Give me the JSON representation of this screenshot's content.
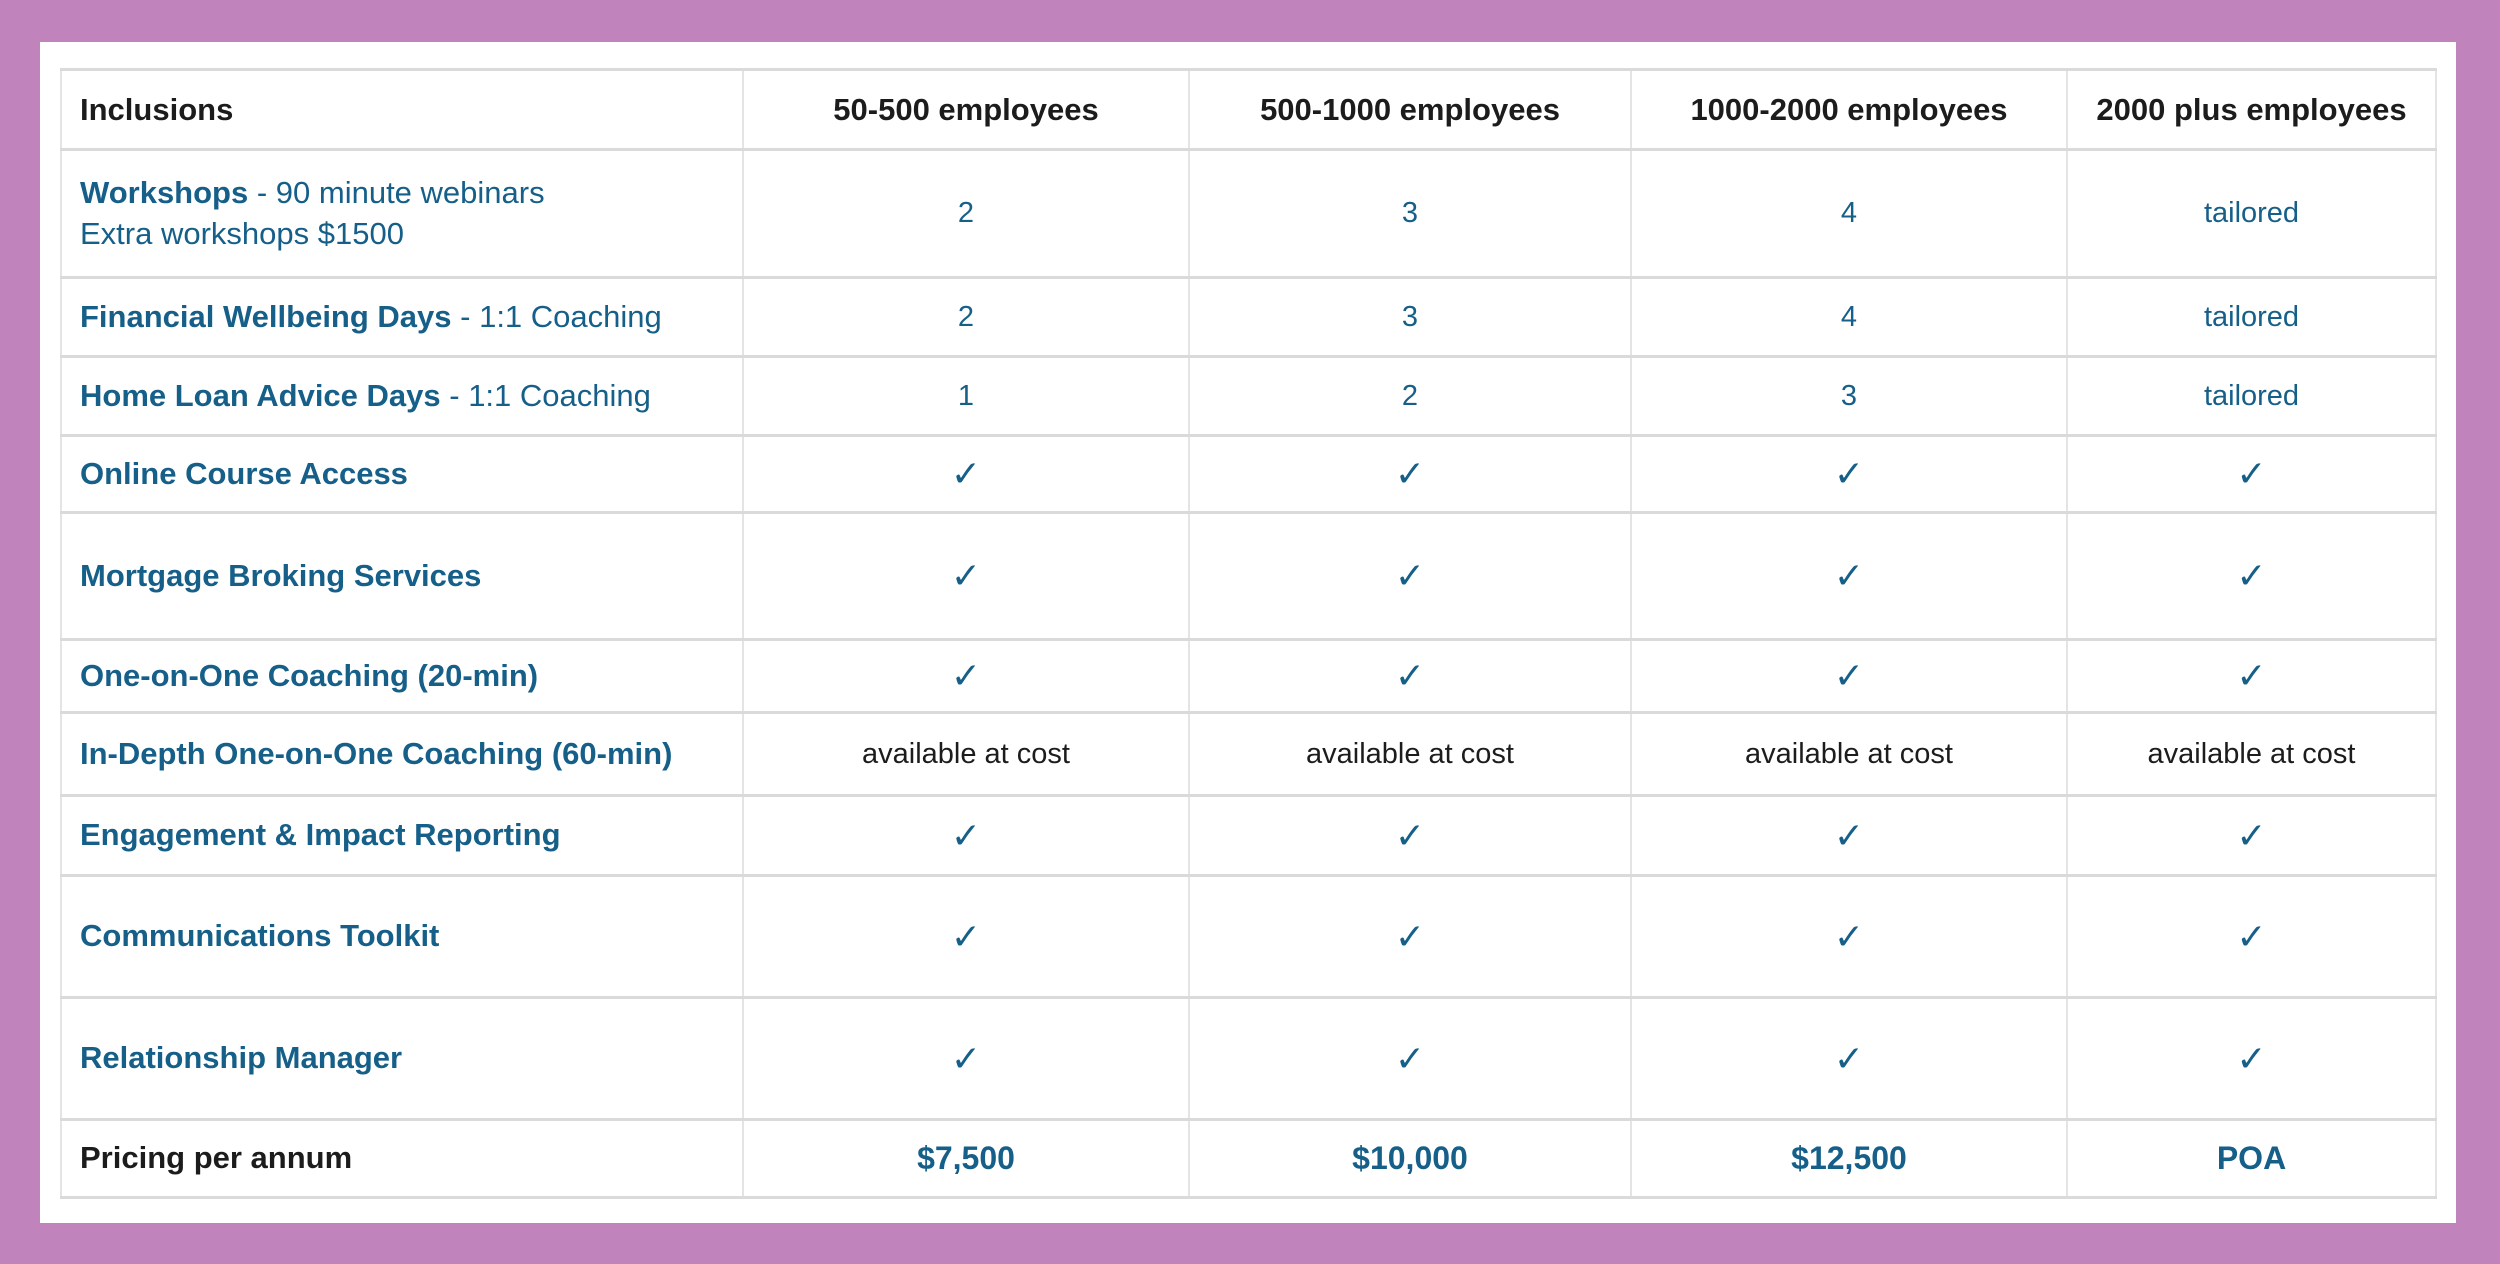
{
  "colors": {
    "background": "#c183bc",
    "panel": "#ffffff",
    "grid": "#dadada",
    "teal_text": "#155f89",
    "dark_text": "#1c1c1c"
  },
  "table": {
    "columns": [
      "Inclusions",
      "50-500 employees",
      "500-1000 employees",
      "1000-2000 employees",
      "2000 plus employees"
    ],
    "check_glyph": "✓",
    "rows": [
      {
        "name": "workshops",
        "label_bold": "Workshops",
        "label_rest": " - 90 minute webinars",
        "label_line2": "Extra workshops $1500",
        "cell_kind": "number",
        "cells": [
          "2",
          "3",
          "4",
          "tailored"
        ]
      },
      {
        "name": "financial-wellbeing-days",
        "label_bold": "Financial Wellbeing Days",
        "label_rest": " - 1:1 Coaching",
        "cell_kind": "number",
        "cells": [
          "2",
          "3",
          "4",
          "tailored"
        ]
      },
      {
        "name": "home-loan-advice-days",
        "label_bold": "Home Loan Advice Days",
        "label_rest": " - 1:1 Coaching",
        "cell_kind": "number",
        "cells": [
          "1",
          "2",
          "3",
          "tailored"
        ]
      },
      {
        "name": "online-course-access",
        "label_bold": "Online Course Access",
        "cell_kind": "check",
        "cells": [
          "✓",
          "✓",
          "✓",
          "✓"
        ]
      },
      {
        "name": "mortgage-broking-services",
        "label_bold": "Mortgage Broking Services",
        "cell_kind": "check",
        "cells": [
          "✓",
          "✓",
          "✓",
          "✓"
        ]
      },
      {
        "name": "one-on-one-coaching-20-min",
        "label_bold": "One-on-One Coaching (20-min)",
        "cell_kind": "check",
        "cells": [
          "✓",
          "✓",
          "✓",
          "✓"
        ]
      },
      {
        "name": "in-depth-one-on-one-coaching-60-min",
        "label_bold": "In-Depth One-on-One Coaching (60-min)",
        "cell_kind": "plain",
        "cells": [
          "available at cost",
          "available at cost",
          "available at cost",
          "available at cost"
        ]
      },
      {
        "name": "engagement-impact-reporting",
        "label_bold": "Engagement & Impact Reporting",
        "cell_kind": "check",
        "cells": [
          "✓",
          "✓",
          "✓",
          "✓"
        ]
      },
      {
        "name": "communications-toolkit",
        "label_bold": "Communications Toolkit",
        "cell_kind": "check",
        "cells": [
          "✓",
          "✓",
          "✓",
          "✓"
        ]
      },
      {
        "name": "relationship-manager",
        "label_bold": "Relationship Manager",
        "cell_kind": "check",
        "cells": [
          "✓",
          "✓",
          "✓",
          "✓"
        ]
      },
      {
        "name": "pricing-per-annum",
        "label_bold": "Pricing per annum",
        "label_dark": true,
        "cell_kind": "price",
        "cells": [
          "$7,500",
          "$10,000",
          "$12,500",
          "POA"
        ]
      }
    ]
  }
}
